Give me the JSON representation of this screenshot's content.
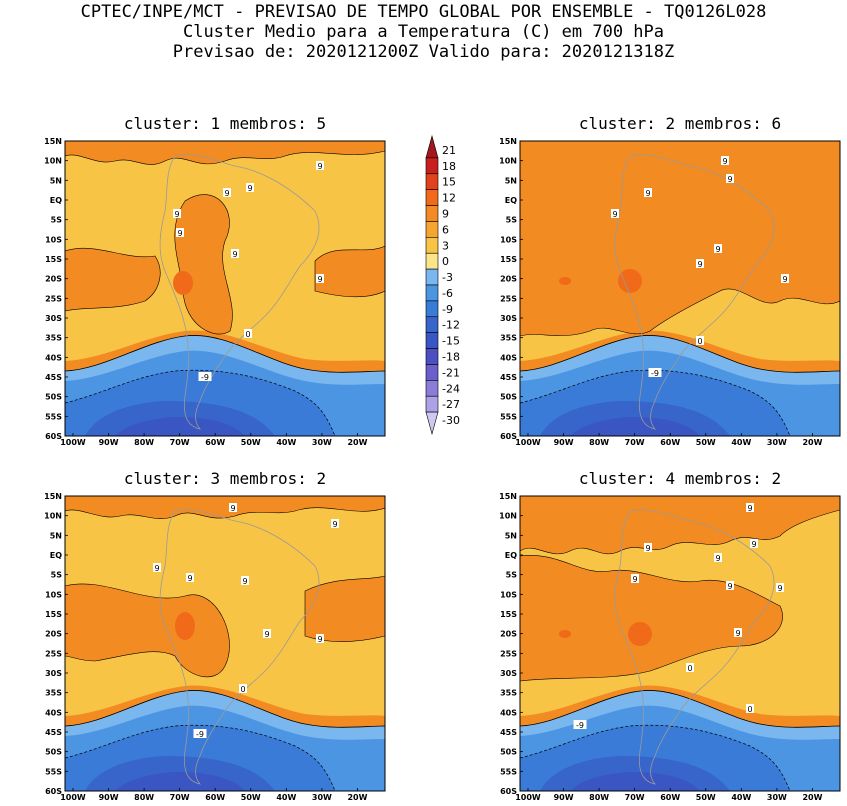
{
  "header": {
    "line1": "CPTEC/INPE/MCT - PREVISAO DE TEMPO GLOBAL POR ENSEMBLE - TQ0126L028",
    "line2": "Cluster Medio para a Temperatura (C) em 700 hPa",
    "line3": "Previsao de: 2020121200Z   Valido para: 2020121318Z"
  },
  "chart_data": {
    "type": "heatmap",
    "colorbar": {
      "levels": [
        21,
        18,
        15,
        12,
        9,
        6,
        3,
        0,
        -3,
        -6,
        -9,
        -12,
        -15,
        -18,
        -21,
        -24,
        -27,
        -30
      ],
      "colors": [
        "#a3161b",
        "#c8201e",
        "#e2421b",
        "#f06a1a",
        "#f38b23",
        "#f6a62e",
        "#f8c446",
        "#fbe48a",
        "#7ab7ee",
        "#4b95e3",
        "#3a7bd8",
        "#3765c9",
        "#3a56c2",
        "#4b4fc0",
        "#6b5fcc",
        "#8c7cd9",
        "#aea2e6",
        "#d1c8f2"
      ]
    },
    "x_ticks": [
      "100W",
      "90W",
      "80W",
      "70W",
      "60W",
      "50W",
      "40W",
      "30W",
      "20W"
    ],
    "y_ticks": [
      "15N",
      "10N",
      "5N",
      "EQ",
      "5S",
      "10S",
      "15S",
      "20S",
      "25S",
      "30S",
      "35S",
      "40S",
      "45S",
      "50S",
      "55S",
      "60S"
    ],
    "panels": [
      {
        "title": "cluster: 1   membros: 5",
        "labels": [
          "9",
          "9",
          "9",
          "9",
          "9",
          "9",
          "9",
          "0",
          "-9"
        ]
      },
      {
        "title": "cluster: 2   membros: 6",
        "labels": [
          "9",
          "9",
          "9",
          "9",
          "9",
          "9",
          "9",
          "0",
          "-9"
        ]
      },
      {
        "title": "cluster: 3   membros: 2",
        "labels": [
          "9",
          "9",
          "9",
          "9",
          "9",
          "9",
          "9",
          "0",
          "-9"
        ]
      },
      {
        "title": "cluster: 4   membros: 2",
        "labels": [
          "9",
          "9",
          "9",
          "9",
          "9",
          "9",
          "9",
          "9",
          "0",
          "0",
          "-9"
        ]
      }
    ]
  }
}
